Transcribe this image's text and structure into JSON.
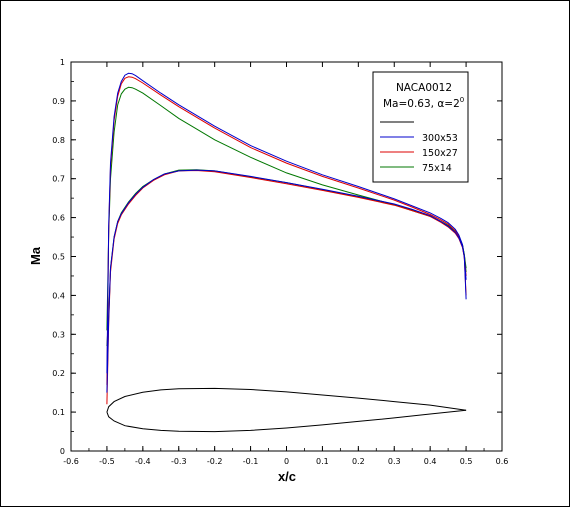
{
  "chart_data": {
    "type": "line",
    "xlabel": "x/c",
    "ylabel": "Ma",
    "xlim": [
      -0.6,
      0.6
    ],
    "ylim": [
      0,
      1
    ],
    "x_ticks": [
      -0.6,
      -0.5,
      -0.4,
      -0.3,
      -0.2,
      -0.1,
      0,
      0.1,
      0.2,
      0.3,
      0.4,
      0.5,
      0.6
    ],
    "x_tick_labels": [
      "-0.6",
      "-0.5",
      "-0.4",
      "-0.3",
      "-0.2",
      "-0.1",
      "0",
      "0.1",
      "0.2",
      "0.3",
      "0.4",
      "0.5",
      "0.6"
    ],
    "y_ticks": [
      0,
      0.1,
      0.2,
      0.3,
      0.4,
      0.5,
      0.6,
      0.7,
      0.8,
      0.9,
      1
    ],
    "y_tick_labels": [
      "0",
      "0.1",
      "0.2",
      "0.3",
      "0.4",
      "0.5",
      "0.6",
      "0.7",
      "0.8",
      "0.9",
      "1"
    ],
    "grid": false,
    "legend": {
      "placement": "top-right",
      "title_line1": "NACA0012",
      "title_line2": "Ma=0.63, α=2",
      "title_sup": "0",
      "entries": [
        {
          "label": "",
          "color": "#000000"
        },
        {
          "label": "300x53",
          "color": "#0000cc"
        },
        {
          "label": "150x27",
          "color": "#dd0000"
        },
        {
          "label": "75x14",
          "color": "#007700"
        }
      ]
    },
    "series": [
      {
        "color": "#0000cc",
        "upper": {
          "x": [
            -0.5,
            -0.495,
            -0.49,
            -0.48,
            -0.47,
            -0.46,
            -0.45,
            -0.44,
            -0.43,
            -0.42,
            -0.4,
            -0.35,
            -0.3,
            -0.2,
            -0.1,
            0,
            0.1,
            0.2,
            0.3,
            0.35,
            0.4,
            0.43,
            0.45,
            0.47,
            0.48,
            0.49,
            0.495,
            0.5
          ],
          "y": [
            0.2,
            0.58,
            0.74,
            0.86,
            0.92,
            0.95,
            0.966,
            0.971,
            0.97,
            0.965,
            0.952,
            0.92,
            0.89,
            0.835,
            0.785,
            0.745,
            0.71,
            0.68,
            0.648,
            0.63,
            0.612,
            0.598,
            0.587,
            0.57,
            0.555,
            0.53,
            0.5,
            0.39
          ]
        },
        "lower": {
          "x": [
            -0.5,
            -0.495,
            -0.49,
            -0.48,
            -0.47,
            -0.46,
            -0.44,
            -0.42,
            -0.4,
            -0.37,
            -0.34,
            -0.3,
            -0.25,
            -0.2,
            -0.1,
            0,
            0.1,
            0.2,
            0.3,
            0.35,
            0.4,
            0.43,
            0.45,
            0.47,
            0.48,
            0.49,
            0.495,
            0.5
          ],
          "y": [
            0.15,
            0.34,
            0.47,
            0.55,
            0.59,
            0.61,
            0.638,
            0.66,
            0.678,
            0.698,
            0.712,
            0.72,
            0.722,
            0.72,
            0.706,
            0.69,
            0.673,
            0.655,
            0.635,
            0.621,
            0.605,
            0.59,
            0.578,
            0.562,
            0.548,
            0.525,
            0.5,
            0.44
          ]
        }
      },
      {
        "color": "#dd0000",
        "upper": {
          "x": [
            -0.5,
            -0.495,
            -0.49,
            -0.48,
            -0.47,
            -0.46,
            -0.45,
            -0.44,
            -0.43,
            -0.42,
            -0.4,
            -0.35,
            -0.3,
            -0.2,
            -0.1,
            0,
            0.1,
            0.2,
            0.3,
            0.35,
            0.4,
            0.43,
            0.45,
            0.47,
            0.48,
            0.49,
            0.495,
            0.5
          ],
          "y": [
            0.17,
            0.57,
            0.73,
            0.85,
            0.912,
            0.944,
            0.958,
            0.962,
            0.961,
            0.957,
            0.946,
            0.915,
            0.885,
            0.83,
            0.78,
            0.74,
            0.706,
            0.676,
            0.645,
            0.627,
            0.608,
            0.594,
            0.583,
            0.566,
            0.552,
            0.527,
            0.498,
            0.4
          ]
        },
        "lower": {
          "x": [
            -0.5,
            -0.495,
            -0.49,
            -0.48,
            -0.47,
            -0.46,
            -0.44,
            -0.42,
            -0.4,
            -0.37,
            -0.34,
            -0.3,
            -0.25,
            -0.2,
            -0.1,
            0,
            0.1,
            0.2,
            0.3,
            0.35,
            0.4,
            0.43,
            0.45,
            0.47,
            0.48,
            0.49,
            0.495,
            0.5
          ],
          "y": [
            0.12,
            0.33,
            0.46,
            0.545,
            0.585,
            0.607,
            0.635,
            0.657,
            0.676,
            0.696,
            0.71,
            0.72,
            0.721,
            0.718,
            0.703,
            0.687,
            0.67,
            0.652,
            0.632,
            0.618,
            0.603,
            0.588,
            0.576,
            0.56,
            0.546,
            0.523,
            0.498,
            0.45
          ]
        }
      },
      {
        "color": "#007700",
        "upper": {
          "x": [
            -0.5,
            -0.495,
            -0.49,
            -0.48,
            -0.47,
            -0.46,
            -0.45,
            -0.44,
            -0.43,
            -0.42,
            -0.4,
            -0.35,
            -0.3,
            -0.2,
            -0.1,
            0,
            0.1,
            0.2,
            0.3,
            0.35,
            0.4,
            0.43,
            0.45,
            0.47,
            0.48,
            0.49,
            0.495,
            0.5
          ],
          "y": [
            0.31,
            0.56,
            0.7,
            0.82,
            0.89,
            0.918,
            0.93,
            0.935,
            0.934,
            0.93,
            0.92,
            0.888,
            0.855,
            0.8,
            0.755,
            0.715,
            0.684,
            0.658,
            0.633,
            0.618,
            0.603,
            0.59,
            0.58,
            0.566,
            0.553,
            0.53,
            0.505,
            0.46
          ]
        },
        "lower": {
          "x": [
            -0.5,
            -0.495,
            -0.49,
            -0.48,
            -0.47,
            -0.46,
            -0.44,
            -0.42,
            -0.4,
            -0.37,
            -0.34,
            -0.3,
            -0.25,
            -0.2,
            -0.1,
            0,
            0.1,
            0.2,
            0.3,
            0.35,
            0.4,
            0.43,
            0.45,
            0.47,
            0.48,
            0.49,
            0.495,
            0.5
          ],
          "y": [
            0.27,
            0.35,
            0.47,
            0.55,
            0.59,
            0.612,
            0.64,
            0.662,
            0.68,
            0.698,
            0.712,
            0.722,
            0.723,
            0.72,
            0.705,
            0.69,
            0.672,
            0.654,
            0.634,
            0.62,
            0.605,
            0.59,
            0.578,
            0.563,
            0.55,
            0.528,
            0.505,
            0.47
          ]
        }
      }
    ],
    "airfoil_outline": {
      "color": "#000000",
      "upper": {
        "x": [
          -0.5,
          -0.495,
          -0.48,
          -0.45,
          -0.4,
          -0.35,
          -0.3,
          -0.2,
          -0.1,
          0,
          0.1,
          0.2,
          0.3,
          0.4,
          0.5
        ],
        "y": [
          0.1,
          0.114,
          0.127,
          0.14,
          0.151,
          0.157,
          0.16,
          0.161,
          0.158,
          0.152,
          0.144,
          0.136,
          0.127,
          0.118,
          0.105
        ]
      },
      "lower": {
        "x": [
          -0.5,
          -0.495,
          -0.48,
          -0.45,
          -0.4,
          -0.35,
          -0.3,
          -0.2,
          -0.1,
          0,
          0.1,
          0.2,
          0.3,
          0.4,
          0.5
        ],
        "y": [
          0.1,
          0.088,
          0.077,
          0.065,
          0.057,
          0.053,
          0.051,
          0.05,
          0.053,
          0.059,
          0.067,
          0.076,
          0.085,
          0.095,
          0.105
        ]
      }
    }
  }
}
